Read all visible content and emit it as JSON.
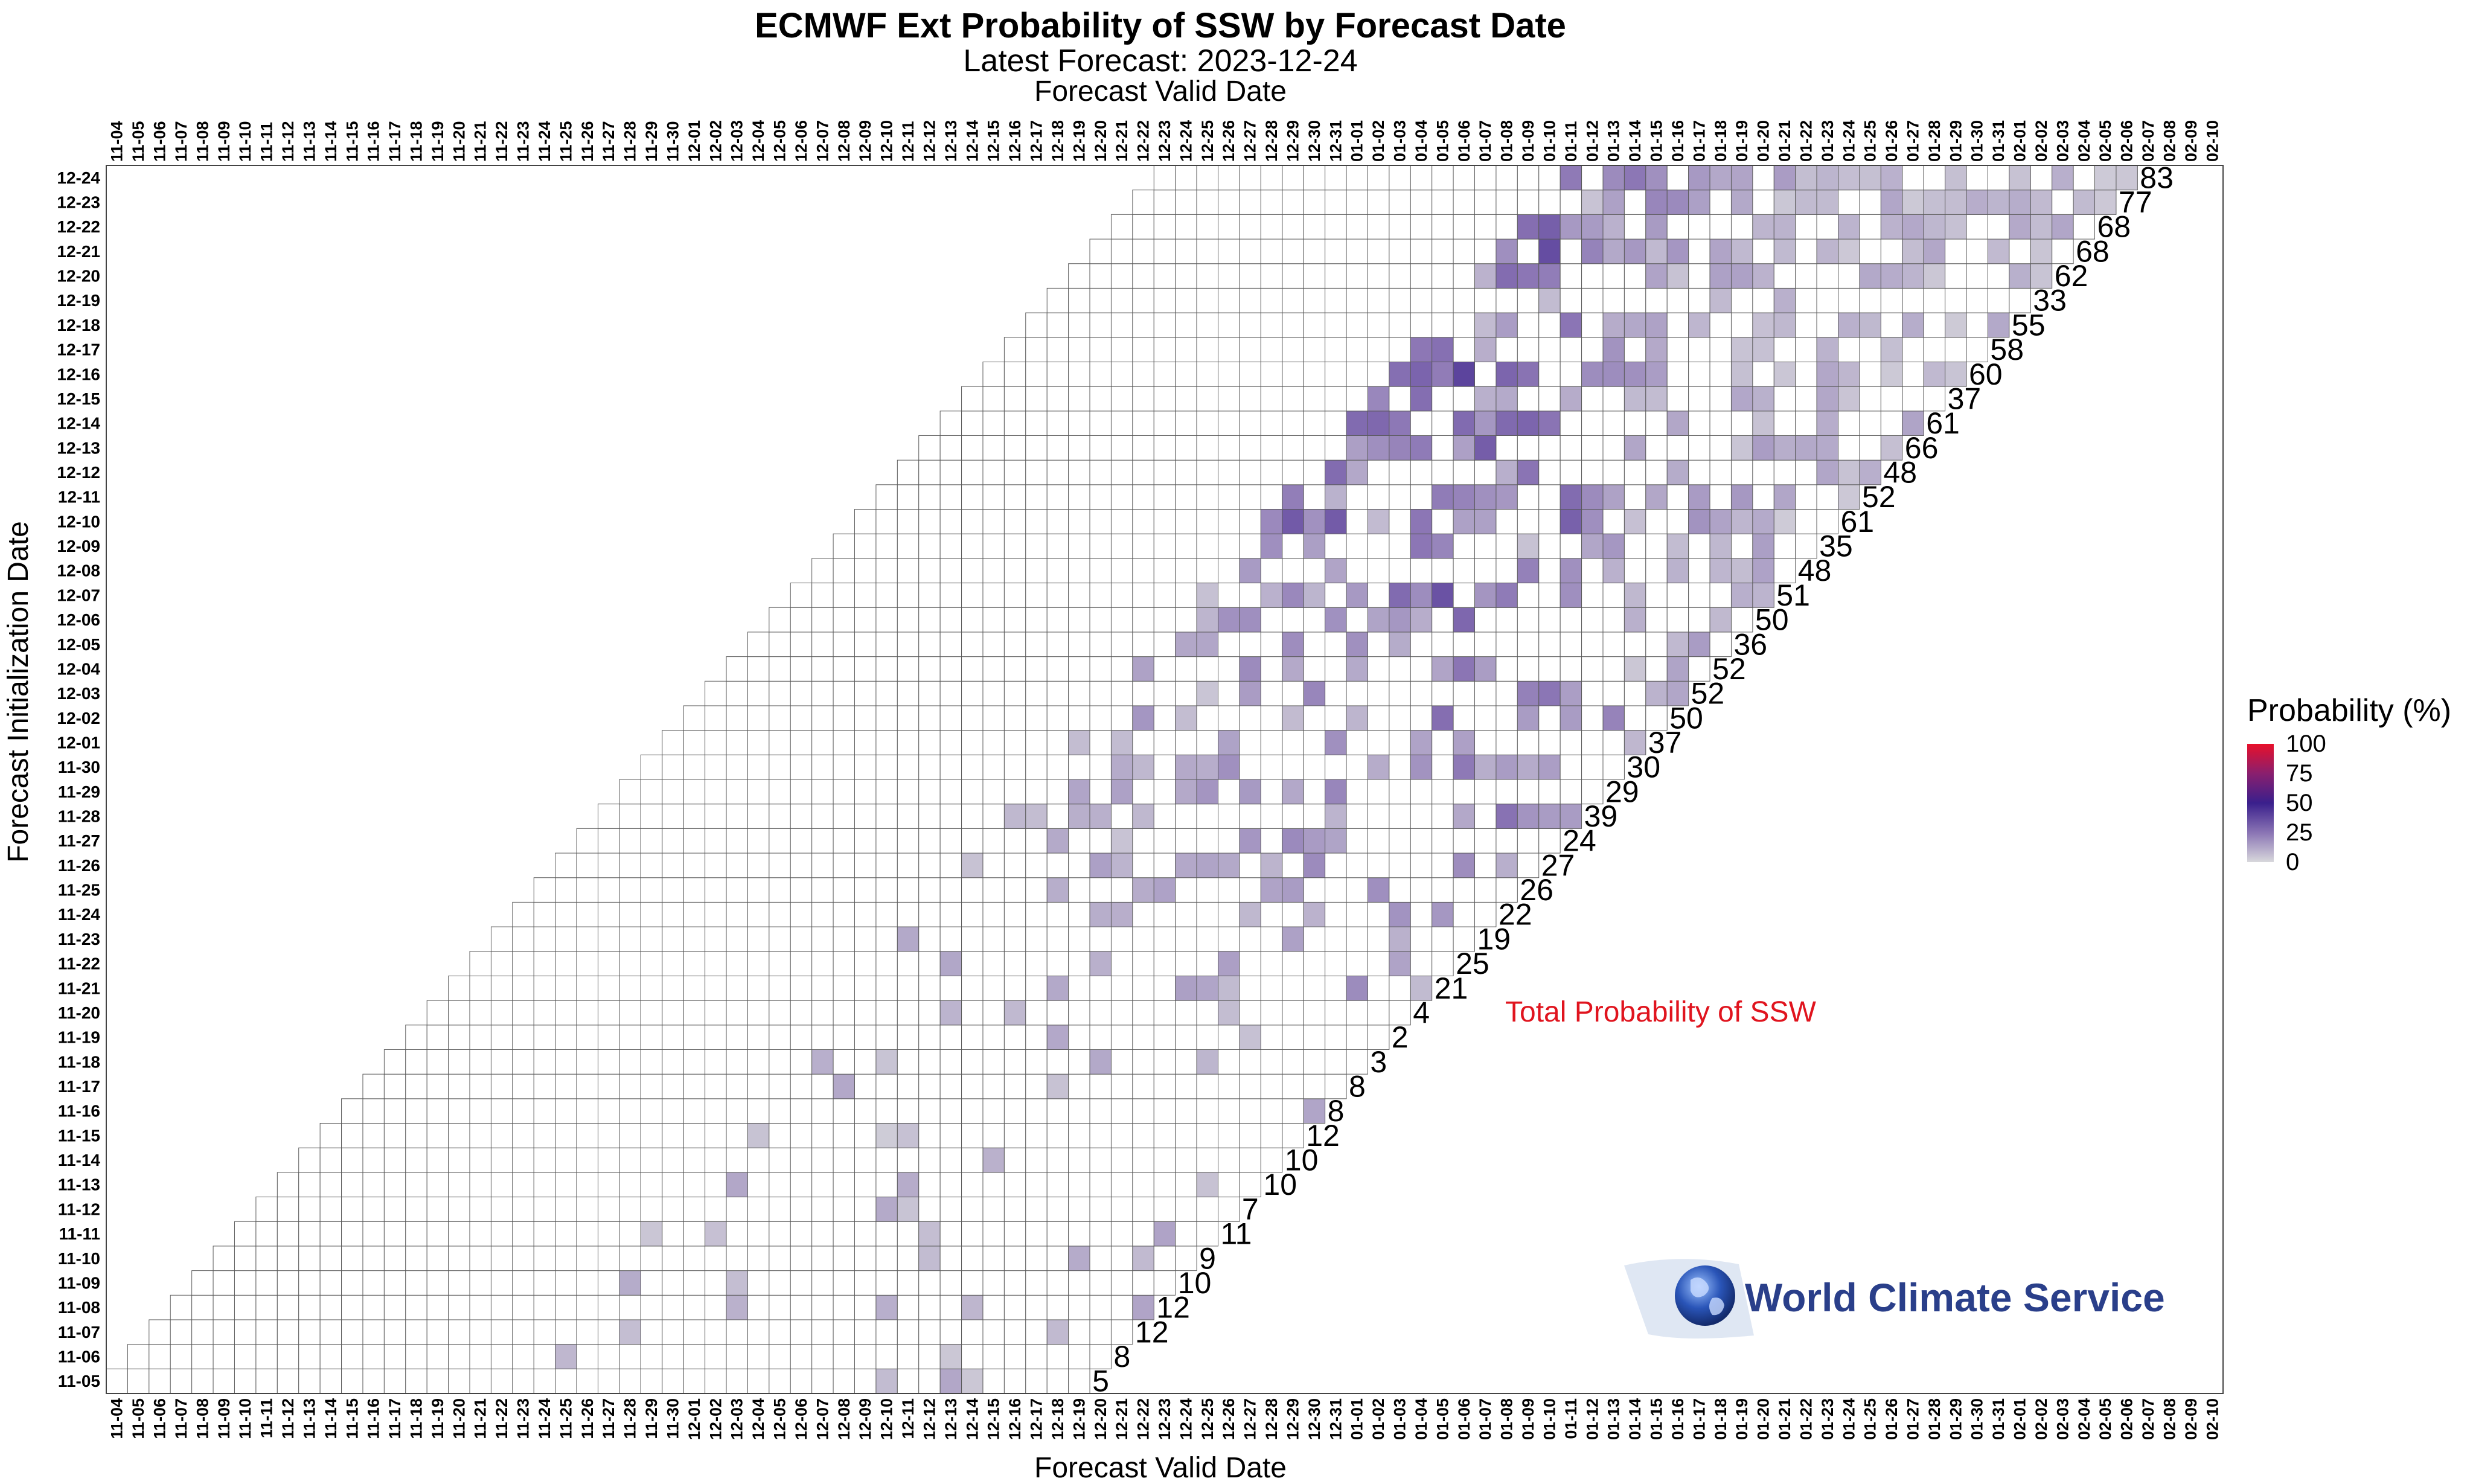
{
  "chart_data": {
    "type": "heatmap",
    "title": "ECMWF Ext Probability of SSW by Forecast Date",
    "subtitle": "Latest Forecast: 2023-12-24",
    "xlabel": "Forecast Valid Date",
    "ylabel": "Forecast Initialization Date",
    "x_start": "2023-11-04",
    "x_end": "2024-02-10",
    "init_dates": [
      "11-05",
      "11-06",
      "11-07",
      "11-08",
      "11-09",
      "11-10",
      "11-11",
      "11-12",
      "11-13",
      "11-14",
      "11-15",
      "11-16",
      "11-17",
      "11-18",
      "11-19",
      "11-20",
      "11-21",
      "11-22",
      "11-23",
      "11-24",
      "11-25",
      "11-26",
      "11-27",
      "11-28",
      "11-29",
      "11-30",
      "12-01",
      "12-02",
      "12-03",
      "12-04",
      "12-05",
      "12-06",
      "12-07",
      "12-08",
      "12-09",
      "12-10",
      "12-11",
      "12-12",
      "12-13",
      "12-14",
      "12-15",
      "12-16",
      "12-17",
      "12-18",
      "12-19",
      "12-20",
      "12-21",
      "12-22",
      "12-23",
      "12-24"
    ],
    "total_probability": [
      5,
      8,
      12,
      12,
      10,
      9,
      11,
      7,
      10,
      10,
      12,
      8,
      8,
      3,
      2,
      4,
      21,
      25,
      19,
      22,
      26,
      27,
      24,
      39,
      29,
      30,
      37,
      50,
      52,
      52,
      36,
      50,
      51,
      48,
      35,
      61,
      52,
      48,
      66,
      61,
      37,
      60,
      58,
      55,
      33,
      62,
      68,
      68,
      77,
      83
    ],
    "forecast_length_days": 46,
    "colorscale": {
      "ticks": [
        0,
        25,
        50,
        75,
        100
      ],
      "colors": [
        "#d8d8dc",
        "#8a74b4",
        "#3a1f8c",
        "#8a1f6e",
        "#e8102a"
      ]
    },
    "legend": {
      "title": "Probability (%)",
      "placement": "right"
    },
    "annotation": "Total Probability of SSW",
    "grid": true
  },
  "branding": {
    "logo_text": "World Climate Service",
    "logo_icon": "globe-icon"
  }
}
